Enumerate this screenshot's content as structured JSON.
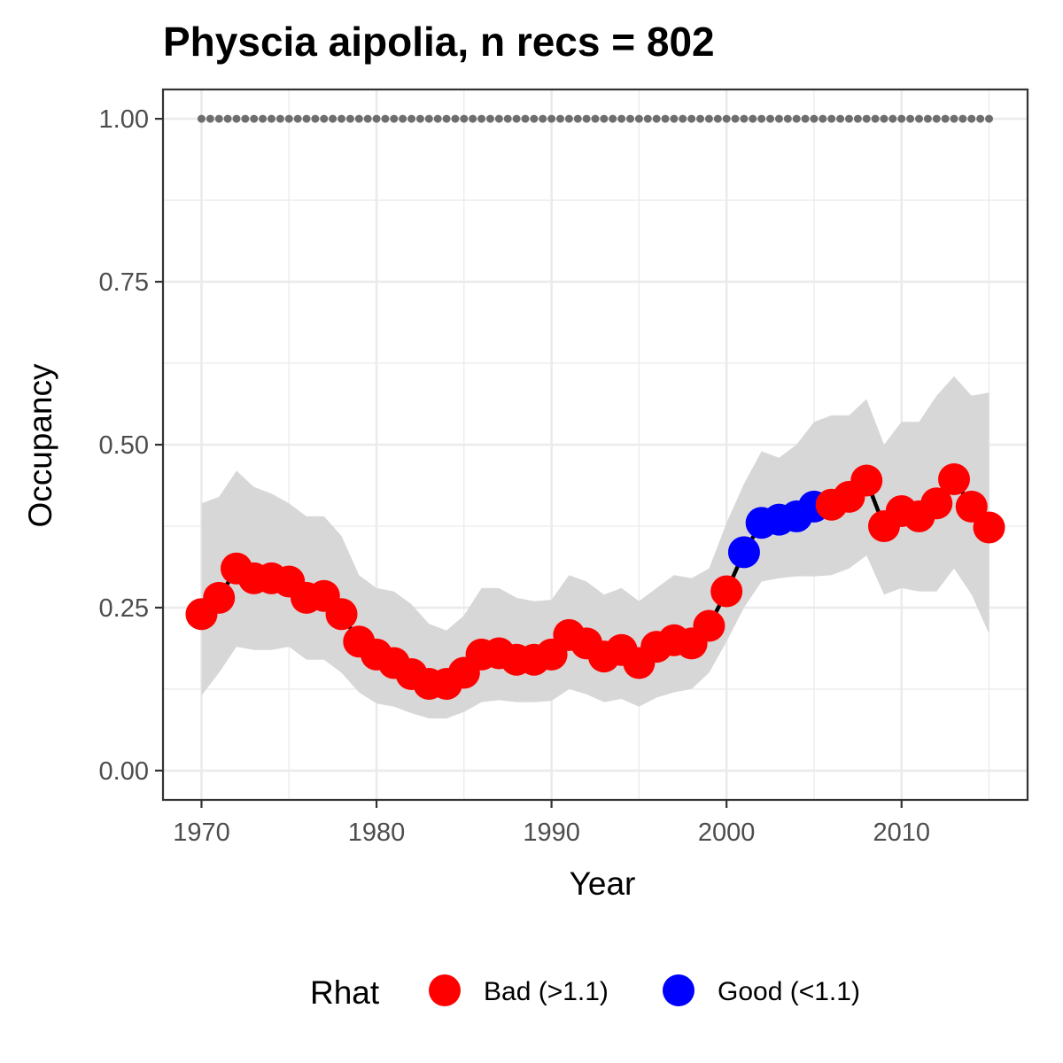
{
  "chart_data": {
    "type": "line",
    "title": "Physcia aipolia, n recs = 802",
    "xlabel": "Year",
    "ylabel": "Occupancy",
    "xlim": [
      1967.8,
      2017.2
    ],
    "ylim": [
      -0.045,
      1.045
    ],
    "x_ticks": [
      1970,
      1980,
      1990,
      2000,
      2010
    ],
    "x_tick_labels": [
      "1970",
      "1980",
      "1990",
      "2000",
      "2010"
    ],
    "y_ticks": [
      0,
      0.25,
      0.5,
      0.75,
      1.0
    ],
    "y_tick_labels": [
      "0.00",
      "0.25",
      "0.50",
      "0.75",
      "1.00"
    ],
    "grid": true,
    "reference_line": {
      "y": 1.0,
      "style": "dotted",
      "color": "#6e6e6e"
    },
    "x": [
      1970,
      1971,
      1972,
      1973,
      1974,
      1975,
      1976,
      1977,
      1978,
      1979,
      1980,
      1981,
      1982,
      1983,
      1984,
      1985,
      1986,
      1987,
      1988,
      1989,
      1990,
      1991,
      1992,
      1993,
      1994,
      1995,
      1996,
      1997,
      1998,
      1999,
      2000,
      2001,
      2002,
      2003,
      2004,
      2005,
      2006,
      2007,
      2008,
      2009,
      2010,
      2011,
      2012,
      2013,
      2014,
      2015
    ],
    "series": [
      {
        "values": [
          0.24,
          0.265,
          0.31,
          0.295,
          0.295,
          0.29,
          0.265,
          0.268,
          0.24,
          0.198,
          0.178,
          0.165,
          0.148,
          0.133,
          0.133,
          0.15,
          0.178,
          0.18,
          0.17,
          0.17,
          0.178,
          0.208,
          0.195,
          0.175,
          0.185,
          0.165,
          0.19,
          0.2,
          0.195,
          0.222,
          0.275,
          0.335,
          0.38,
          0.385,
          0.39,
          0.405,
          0.408,
          0.42,
          0.445,
          0.375,
          0.398,
          0.39,
          0.41,
          0.447,
          0.405,
          0.373
        ],
        "lower": [
          0.115,
          0.15,
          0.19,
          0.185,
          0.185,
          0.19,
          0.17,
          0.17,
          0.15,
          0.12,
          0.103,
          0.098,
          0.088,
          0.08,
          0.08,
          0.09,
          0.105,
          0.108,
          0.105,
          0.105,
          0.107,
          0.125,
          0.117,
          0.105,
          0.11,
          0.098,
          0.112,
          0.12,
          0.125,
          0.15,
          0.198,
          0.25,
          0.29,
          0.295,
          0.298,
          0.298,
          0.3,
          0.31,
          0.33,
          0.27,
          0.28,
          0.275,
          0.275,
          0.31,
          0.27,
          0.21
        ],
        "upper": [
          0.41,
          0.42,
          0.46,
          0.435,
          0.425,
          0.41,
          0.39,
          0.39,
          0.36,
          0.3,
          0.28,
          0.275,
          0.255,
          0.225,
          0.215,
          0.238,
          0.28,
          0.28,
          0.265,
          0.26,
          0.262,
          0.3,
          0.29,
          0.27,
          0.28,
          0.26,
          0.28,
          0.3,
          0.295,
          0.31,
          0.38,
          0.44,
          0.49,
          0.48,
          0.5,
          0.535,
          0.545,
          0.545,
          0.57,
          0.5,
          0.535,
          0.535,
          0.575,
          0.605,
          0.575,
          0.58
        ],
        "rhat_status": [
          "bad",
          "bad",
          "bad",
          "bad",
          "bad",
          "bad",
          "bad",
          "bad",
          "bad",
          "bad",
          "bad",
          "bad",
          "bad",
          "bad",
          "bad",
          "bad",
          "bad",
          "bad",
          "bad",
          "bad",
          "bad",
          "bad",
          "bad",
          "bad",
          "bad",
          "bad",
          "bad",
          "bad",
          "bad",
          "bad",
          "bad",
          "good",
          "good",
          "good",
          "good",
          "good",
          "bad",
          "bad",
          "bad",
          "bad",
          "bad",
          "bad",
          "bad",
          "bad",
          "bad",
          "bad"
        ]
      }
    ],
    "legend": {
      "title": "Rhat",
      "position": "bottom",
      "items": [
        {
          "key": "bad",
          "label": "Bad (>1.1)",
          "color": "#ff0000"
        },
        {
          "key": "good",
          "label": "Good (<1.1)",
          "color": "#0000ff"
        }
      ]
    },
    "colors": {
      "ribbon": "#d7d7d7",
      "line": "#000000",
      "grid": "#ebebeb",
      "panel_border": "#333333"
    }
  }
}
